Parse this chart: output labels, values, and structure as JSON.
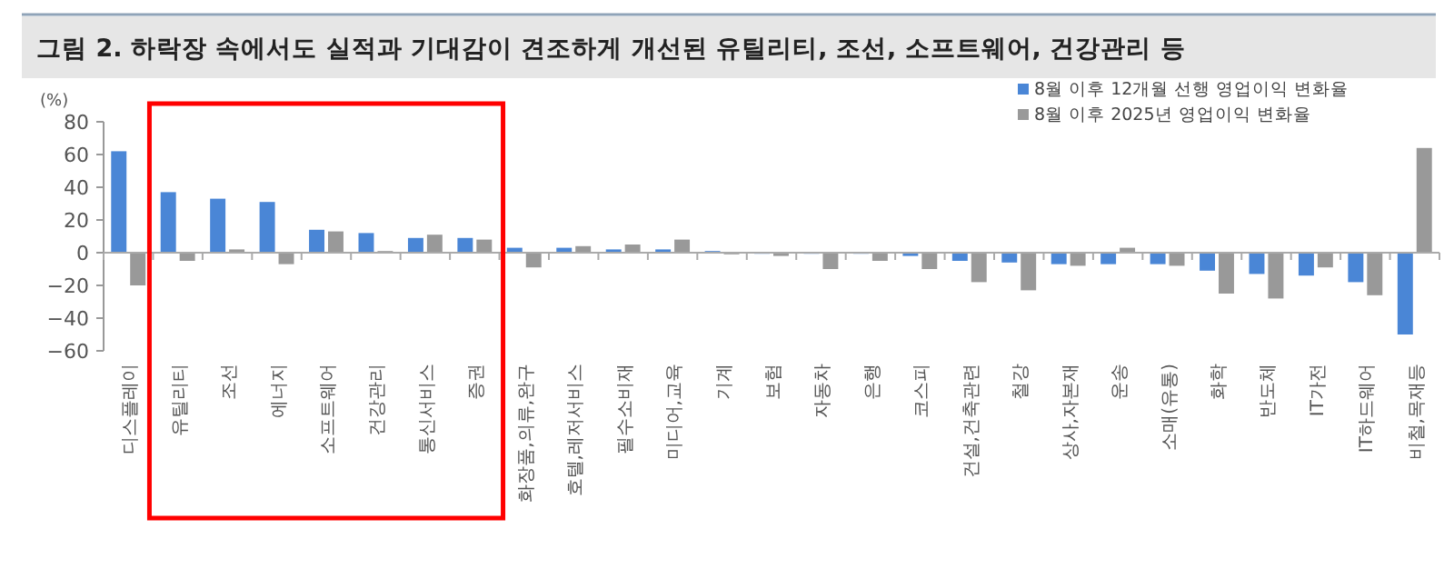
{
  "chart_data": {
    "type": "bar",
    "title": "그림 2. 하락장 속에서도 실적과 기대감이 견조하게 개선된 유틸리티, 조선, 소프트웨어, 건강관리 등",
    "ylabel": "(%)",
    "categories": [
      "디스플레이",
      "유틸리티",
      "조선",
      "에너지",
      "소프트웨어",
      "건강관리",
      "통신서비스",
      "증권",
      "화장품,의류,완구",
      "호텔,레저서비스",
      "필수소비재",
      "미디어,교육",
      "기계",
      "보험",
      "자동차",
      "은행",
      "코스피",
      "건설,건축관련",
      "철강",
      "상사,자본재",
      "운송",
      "소매(유통)",
      "화학",
      "반도체",
      "IT가전",
      "IT하드웨어",
      "비철,목재등"
    ],
    "series": [
      {
        "name": "8월 이후 12개월 선행 영업이익 변화율",
        "color": "#4a86d6",
        "values": [
          62,
          37,
          33,
          31,
          14,
          12,
          9,
          9,
          3,
          3,
          2,
          2,
          1,
          0,
          0,
          0,
          -2,
          -5,
          -6,
          -7,
          -7,
          -7,
          -11,
          -13,
          -14,
          -18,
          -50
        ]
      },
      {
        "name": "8월 이후 2025년 영업이익 변화율",
        "color": "#999999",
        "values": [
          -20,
          -5,
          2,
          -7,
          13,
          1,
          11,
          8,
          -9,
          4,
          5,
          8,
          -1,
          -2,
          -10,
          -5,
          -10,
          -18,
          -23,
          -8,
          3,
          -8,
          -25,
          -28,
          -9,
          -26,
          64
        ]
      }
    ],
    "ylim": [
      -60,
      80
    ],
    "yticks": [
      -60,
      -40,
      -20,
      0,
      20,
      40,
      60,
      80
    ],
    "legend": "top right"
  }
}
